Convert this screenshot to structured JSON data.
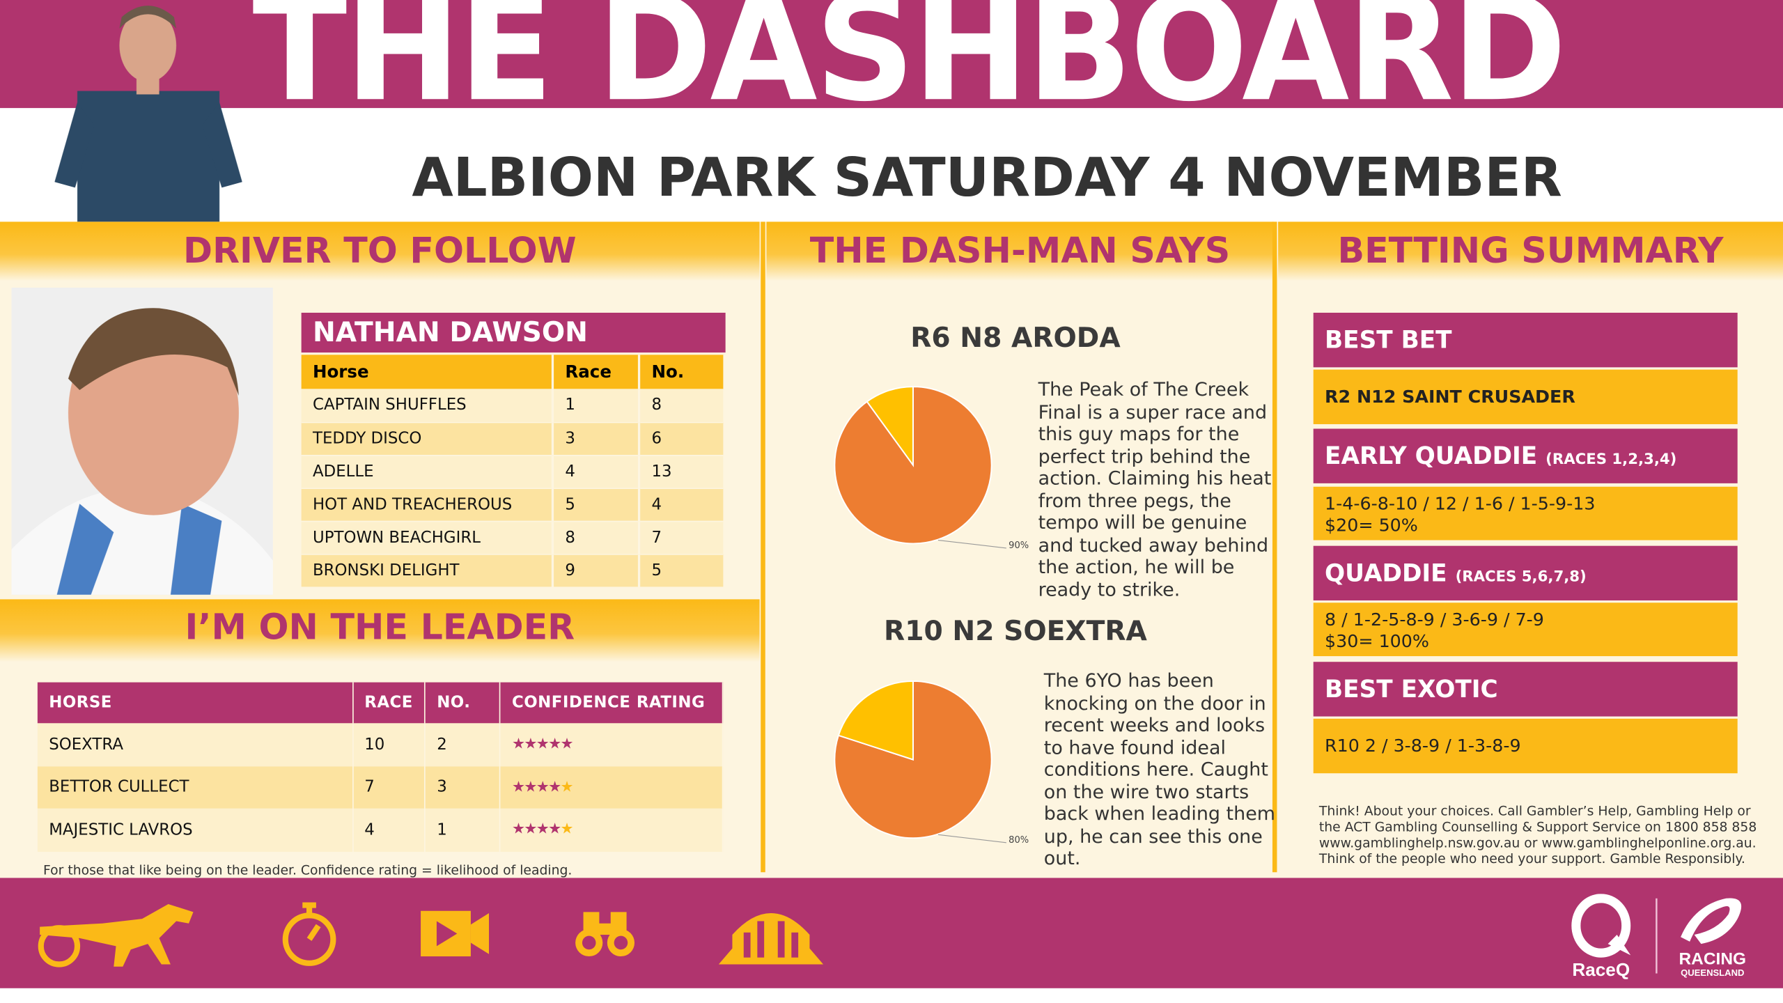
{
  "header": {
    "title": "THE DASHBOARD",
    "subtitle": "ALBION PARK SATURDAY 4 NOVEMBER"
  },
  "colors": {
    "magenta": "#b0346e",
    "yellow": "#fbb917",
    "cream": "#fdf5e0",
    "pie_orange": "#ed7d31",
    "pie_yellow": "#ffc000"
  },
  "driver": {
    "section_title": "DRIVER TO FOLLOW",
    "name": "NATHAN DAWSON",
    "columns": [
      "Horse",
      "Race",
      "No."
    ],
    "rows": [
      [
        "CAPTAIN SHUFFLES",
        "1",
        "8"
      ],
      [
        "TEDDY DISCO",
        "3",
        "6"
      ],
      [
        "ADELLE",
        "4",
        "13"
      ],
      [
        "HOT AND TREACHEROUS",
        "5",
        "4"
      ],
      [
        "UPTOWN BEACHGIRL",
        "8",
        "7"
      ],
      [
        "BRONSKI DELIGHT",
        "9",
        "5"
      ]
    ]
  },
  "leader": {
    "section_title": "I’M ON THE LEADER",
    "columns": [
      "HORSE",
      "RACE",
      "NO.",
      "CONFIDENCE RATING"
    ],
    "rows": [
      {
        "horse": "SOEXTRA",
        "race": "10",
        "no": "2",
        "rating": 5
      },
      {
        "horse": "BETTOR CULLECT",
        "race": "7",
        "no": "3",
        "rating": 4
      },
      {
        "horse": "MAJESTIC LAVROS",
        "race": "4",
        "no": "1",
        "rating": 4
      }
    ],
    "note": "For those that like being on the leader.  Confidence rating = likelihood of leading."
  },
  "dashman": {
    "section_title": "THE DASH-MAN SAYS",
    "picks": [
      {
        "title": "R6 N8 ARODA",
        "label": "90%",
        "text": "The Peak of The Creek Final is a super race and this guy maps for the perfect trip behind the action. Claiming his heat from three pegs, the tempo will be genuine and tucked away behind the action, he will be ready to strike."
      },
      {
        "title": "R10 N2 SOEXTRA",
        "label": "80%",
        "text": "The 6YO has been knocking on the door in recent weeks and looks to have found ideal conditions here. Caught on the wire two starts back when leading them up, he can see this one out."
      }
    ]
  },
  "chart_data": [
    {
      "type": "pie",
      "values": [
        90,
        10
      ],
      "labels": [
        "90%",
        ""
      ]
    },
    {
      "type": "pie",
      "values": [
        80,
        20
      ],
      "labels": [
        "80%",
        ""
      ]
    }
  ],
  "betting": {
    "section_title": "BETTING SUMMARY",
    "best_bet": {
      "title": "BEST BET",
      "value": "R2 N12 SAINT CRUSADER"
    },
    "early_quaddie": {
      "title": "EARLY QUADDIE",
      "races": "(RACES 1,2,3,4)",
      "line1": "1-4-6-8-10 / 12 / 1-6 / 1-5-9-13",
      "line2": "$20= 50%"
    },
    "quaddie": {
      "title": "QUADDIE",
      "races": "(RACES 5,6,7,8)",
      "line1": "8 / 1-2-5-8-9 / 3-6-9 / 7-9",
      "line2": "$30= 100%"
    },
    "best_exotic": {
      "title": "BEST EXOTIC",
      "value": "R10 2 / 3-8-9 / 1-3-8-9"
    },
    "disclaimer": "Think! About your choices. Call Gambler’s Help, Gambling Help or the ACT Gambling Counselling & Support Service on 1800 858 858 www.gamblinghelp.nsw.gov.au or www.gamblinghelponline.org.au. Think of the people who need your support. Gamble Responsibly."
  },
  "footer": {
    "icons": [
      "harness-racing-icon",
      "stopwatch-icon",
      "video-camera-icon",
      "binoculars-icon",
      "starting-gate-icon"
    ],
    "logo_raceq": "RaceQ",
    "logo_rq_line1": "RACING",
    "logo_rq_line2": "QUEENSLAND"
  }
}
